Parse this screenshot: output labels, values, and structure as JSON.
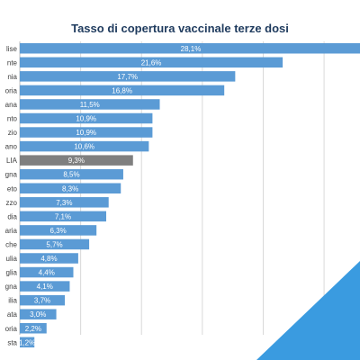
{
  "chart_data": {
    "type": "bar",
    "orientation": "horizontal",
    "title": "Tasso di copertura vaccinale terze dosi",
    "xlabel": "",
    "ylabel": "",
    "xlim": [
      0,
      30
    ],
    "grid": true,
    "categories": [
      "lise",
      "nte",
      "nia",
      "oria",
      "ana",
      "nto",
      "zio",
      "ano",
      "LIA",
      "gna",
      "eto",
      "zzo",
      "dia",
      "aria",
      "che",
      "ulia",
      "glia",
      "gna",
      "ilia",
      "ata",
      "oria",
      "sta"
    ],
    "values": [
      28.1,
      21.6,
      17.7,
      16.8,
      11.5,
      10.9,
      10.9,
      10.6,
      9.3,
      8.5,
      8.3,
      7.3,
      7.1,
      6.3,
      5.7,
      4.8,
      4.4,
      4.1,
      3.7,
      3.0,
      2.2,
      1.2
    ],
    "value_labels": [
      "28,1%",
      "21,6%",
      "17,7%",
      "16,8%",
      "11,5%",
      "10,9%",
      "10,9%",
      "10,6%",
      "9,3%",
      "8,5%",
      "8,3%",
      "7,3%",
      "7,1%",
      "6,3%",
      "5,7%",
      "4,8%",
      "4,4%",
      "4,1%",
      "3,7%",
      "3,0%",
      "2,2%",
      "1,2%"
    ],
    "highlight_category": "LIA",
    "colors": {
      "bar": "#5b9bd5",
      "highlight": "#7f7f7f",
      "title": "#1f3b5e",
      "grid": "#d9d9d9",
      "corner": "#3a9be0"
    }
  }
}
